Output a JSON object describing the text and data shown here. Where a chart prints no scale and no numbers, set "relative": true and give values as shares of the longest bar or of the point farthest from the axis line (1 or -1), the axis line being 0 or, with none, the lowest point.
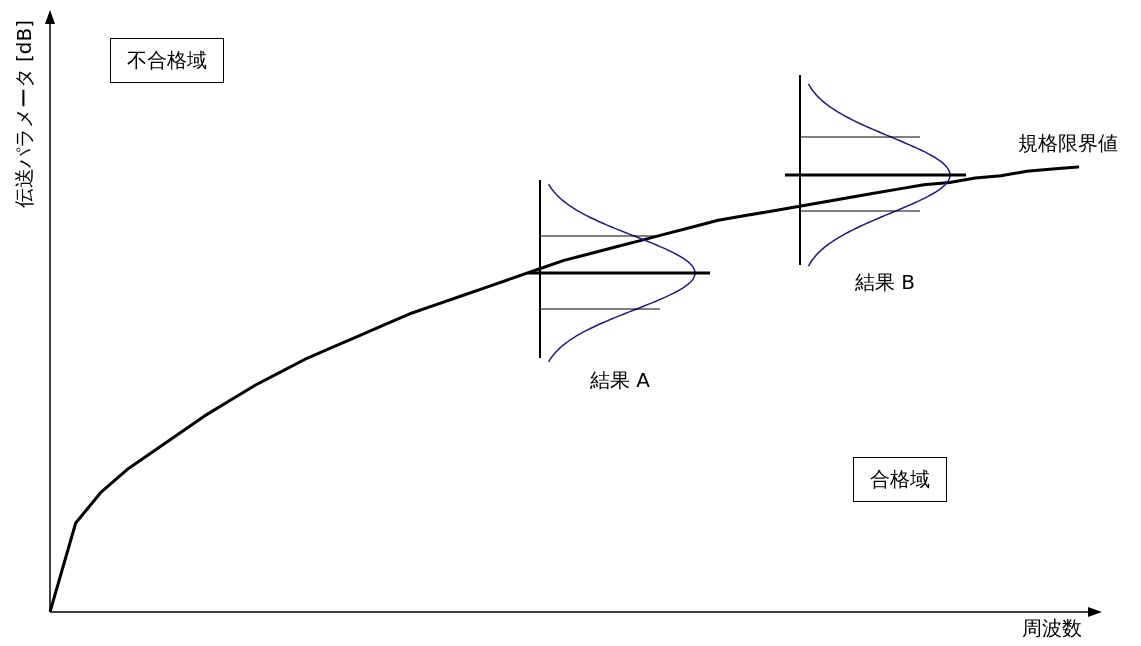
{
  "chart_data": {
    "type": "line",
    "relative": true,
    "xlabel": "周波数",
    "ylabel": "伝送パラメータ [dB]",
    "categories": [
      null,
      null,
      null,
      null,
      null,
      null,
      null,
      null,
      null,
      null,
      null,
      null,
      null,
      null,
      null,
      null,
      null,
      null,
      null,
      null,
      null,
      null,
      null,
      null,
      null,
      null,
      null,
      null,
      null,
      null,
      null,
      null,
      null,
      null,
      null,
      null,
      null,
      null,
      null,
      null,
      null
    ],
    "annotations": [
      "不合格域",
      "結果 B",
      "結果 A",
      "合格域"
    ],
    "series": [
      {
        "name": "規格限界値",
        "color": "#000000",
        "values": [
          0,
          0.2,
          0.27,
          0.32,
          0.36,
          0.4,
          0.44,
          0.475,
          0.51,
          0.54,
          0.57,
          0.595,
          0.62,
          0.645,
          0.67,
          0.69,
          0.71,
          0.73,
          0.75,
          0.77,
          0.79,
          0.805,
          0.82,
          0.835,
          0.85,
          0.865,
          0.88,
          0.89,
          0.9,
          0.91,
          0.92,
          0.93,
          0.94,
          0.95,
          0.96,
          0.965,
          0.975,
          0.98,
          0.99,
          0.995,
          1
        ]
      }
    ]
  }
}
